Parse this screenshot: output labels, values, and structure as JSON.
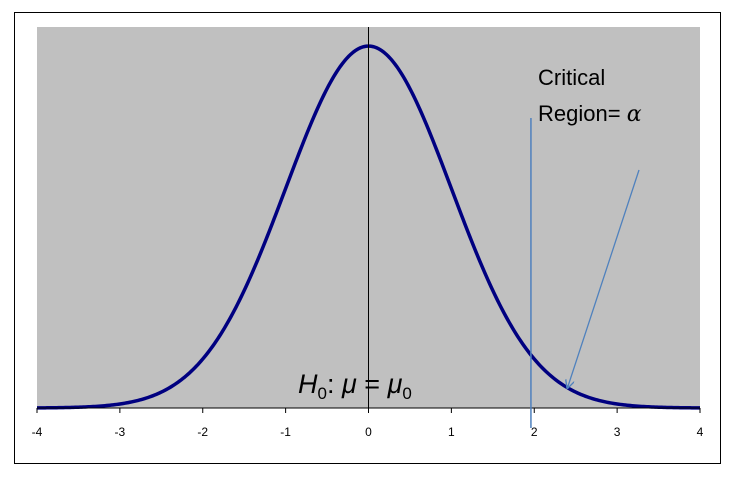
{
  "chart_data": {
    "type": "line",
    "title": "",
    "xlabel": "",
    "ylabel": "",
    "xlim": [
      -4,
      4
    ],
    "ylim": [
      0,
      0.42
    ],
    "x_ticks": [
      -4,
      -3,
      -2,
      -1,
      0,
      1,
      2,
      3,
      4
    ],
    "x_tick_labels": [
      "-4",
      "-3",
      "-2",
      "-1",
      "0",
      "1",
      "2",
      "3",
      "4"
    ],
    "grid": false,
    "legend": "none",
    "series": [
      {
        "x": [
          -4,
          -3.5,
          -3,
          -2.5,
          -2,
          -1.5,
          -1,
          -0.5,
          0,
          0.5,
          1,
          1.5,
          2,
          2.5,
          3,
          3.5,
          4
        ],
        "y": [
          0.0001,
          0.0009,
          0.0044,
          0.0175,
          0.054,
          0.1295,
          0.242,
          0.3521,
          0.3989,
          0.3521,
          0.242,
          0.1295,
          0.054,
          0.0175,
          0.0044,
          0.0009,
          0.0001
        ],
        "color": "#000080"
      }
    ],
    "critical_value": 1.96,
    "arrow_target": [
      2.4,
      0.022
    ],
    "annotations": {
      "critical_line1": "Critical",
      "critical_line2_prefix": "Region= ",
      "critical_alpha": "α",
      "hypothesis": {
        "H": "H",
        "sub0": "0",
        "colon": ": ",
        "mu": "μ",
        "equals": " = ",
        "mu0": "μ",
        "sub0b": "0"
      }
    },
    "colors": {
      "plot_background": "#c0c0c0",
      "curve": "#000080",
      "critical_line": "#4f81bd",
      "arrow": "#4f81bd",
      "axis": "#000000"
    }
  }
}
